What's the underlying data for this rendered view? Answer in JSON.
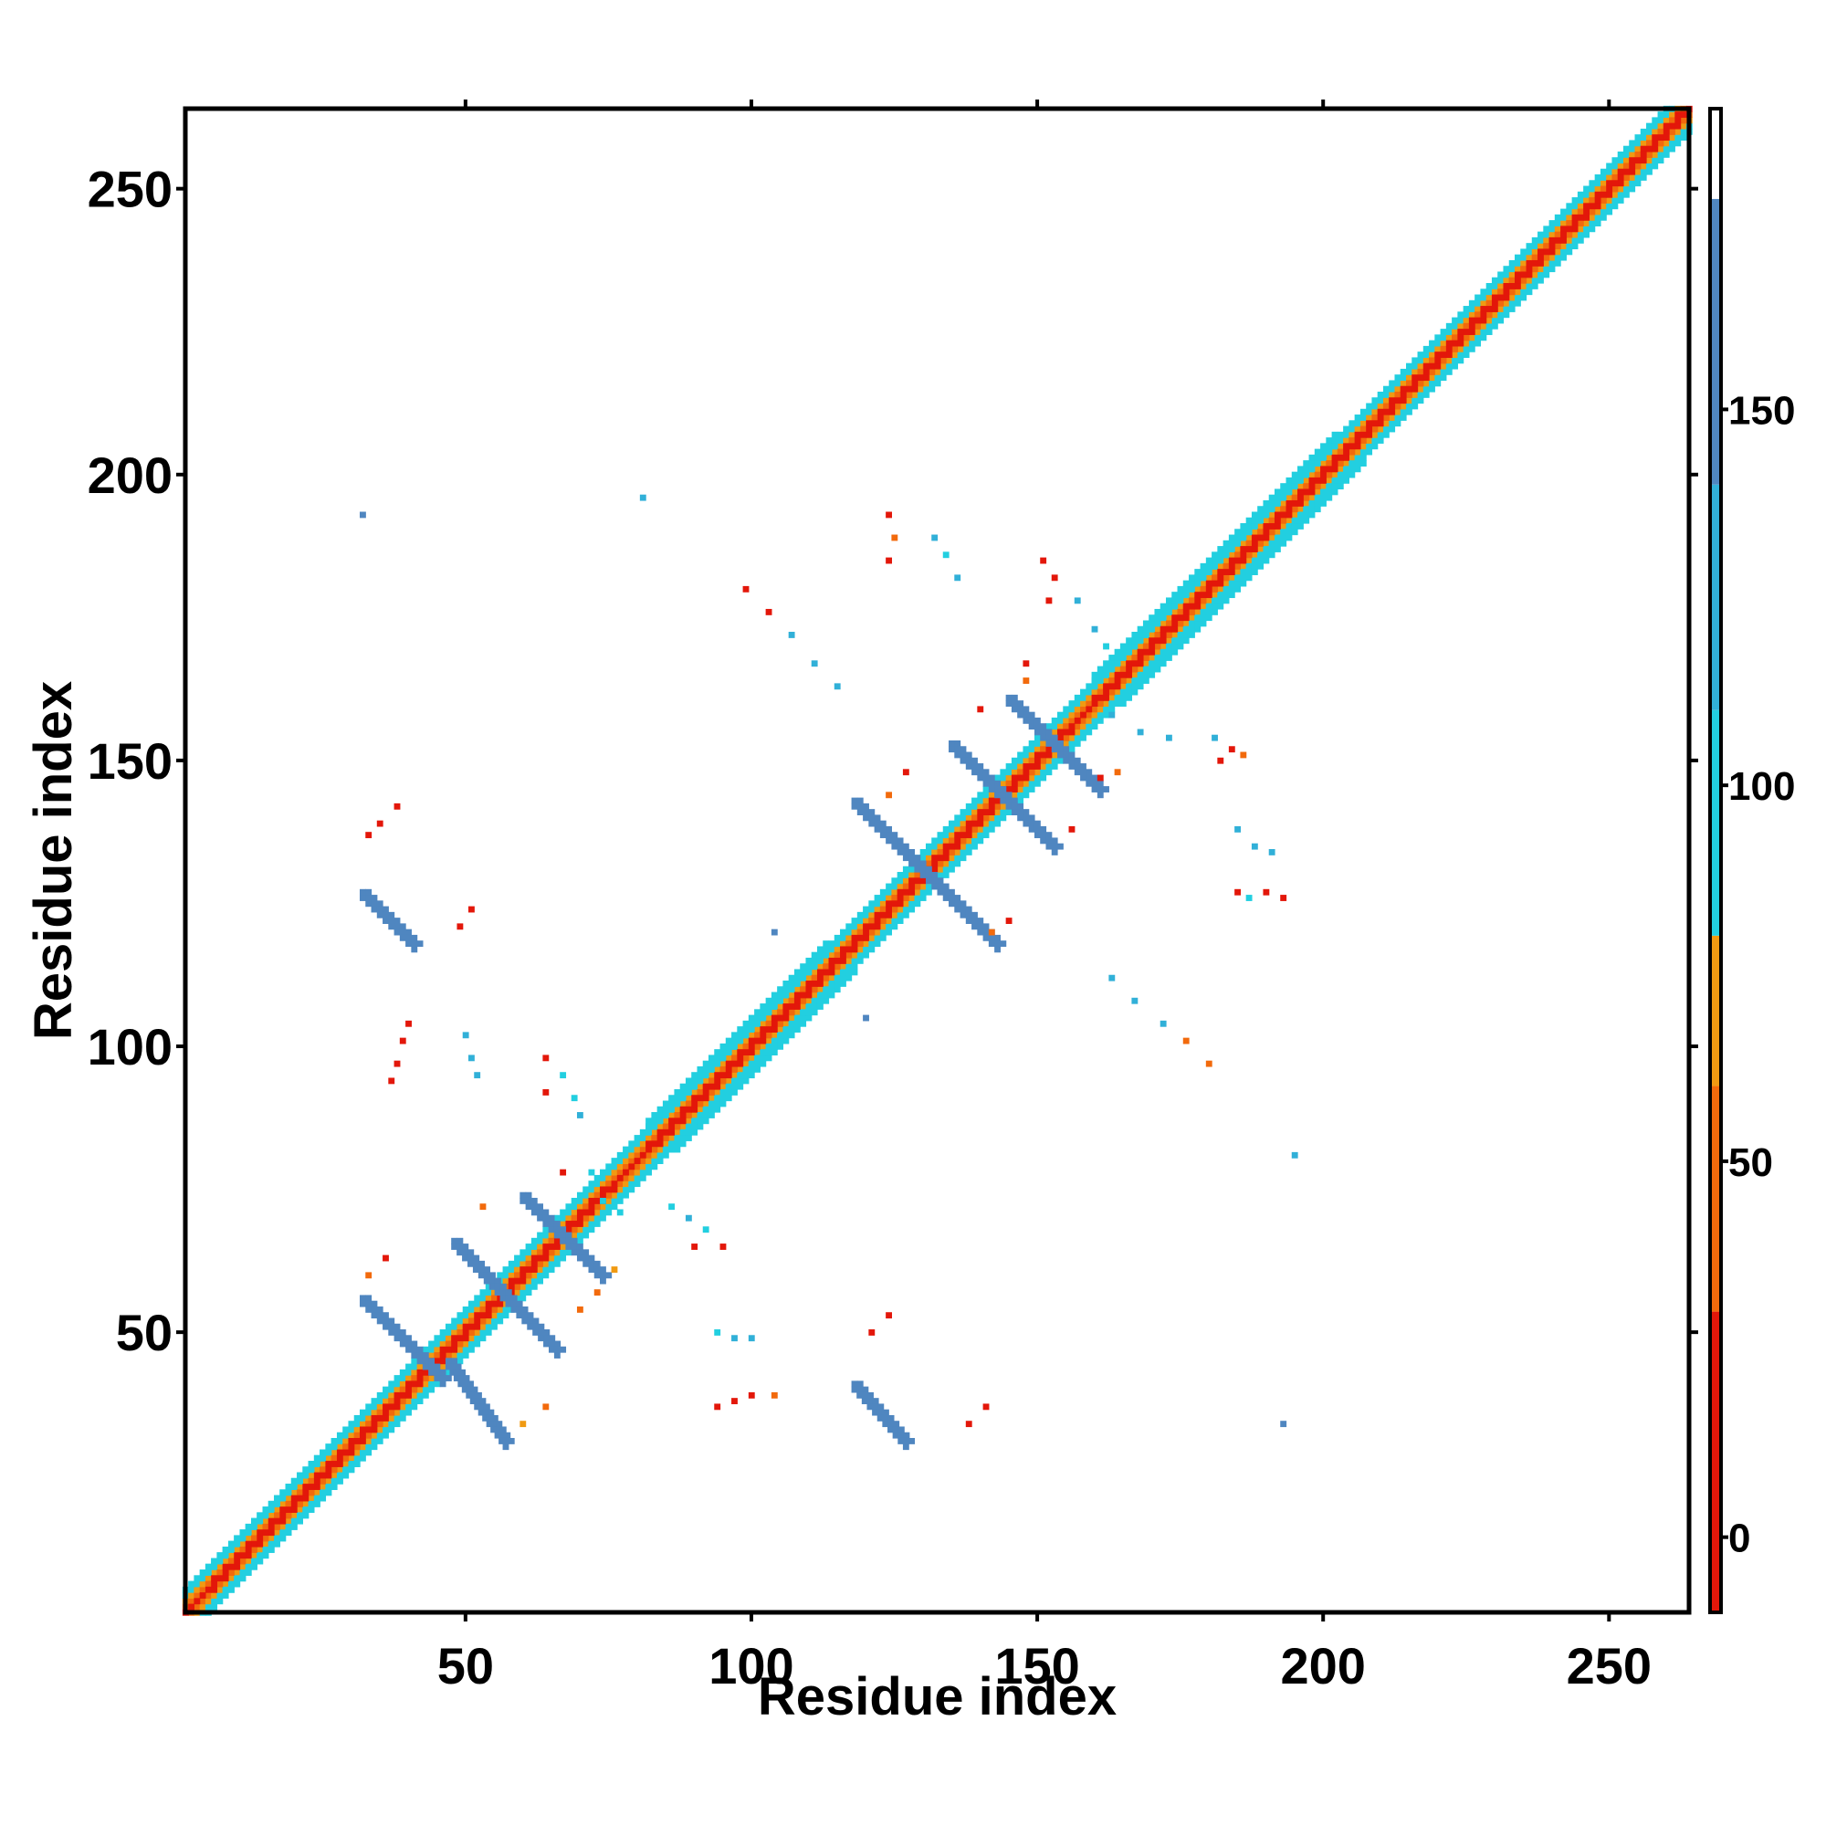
{
  "chart_data": {
    "type": "heatmap",
    "title": "",
    "xlabel": "Residue index",
    "ylabel": "Residue index",
    "xlim": [
      1,
      264
    ],
    "ylim": [
      1,
      264
    ],
    "x_ticks": [
      50,
      100,
      150,
      200,
      250
    ],
    "y_ticks": [
      50,
      100,
      150,
      200,
      250
    ],
    "x_tick_labels": [
      "50",
      "100",
      "150",
      "200",
      "250"
    ],
    "y_tick_labels": [
      "50",
      "100",
      "150",
      "200",
      "250"
    ],
    "grid": false,
    "colorbar": {
      "range": [
        -10,
        190
      ],
      "ticks": [
        0,
        50,
        100,
        150
      ],
      "tick_labels": [
        "0",
        "50",
        "100",
        "150"
      ],
      "bands": [
        {
          "from": -10,
          "to": 30,
          "color": "#e3170a"
        },
        {
          "from": 30,
          "to": 60,
          "color": "#f26a0c"
        },
        {
          "from": 60,
          "to": 80,
          "color": "#f09a12"
        },
        {
          "from": 80,
          "to": 110,
          "color": "#22cfe0"
        },
        {
          "from": 110,
          "to": 140,
          "color": "#31b0d8"
        },
        {
          "from": 140,
          "to": 178,
          "color": "#4f86c0"
        },
        {
          "from": 178,
          "to": 190,
          "color": "#ffffff"
        }
      ]
    },
    "diagonal_band": {
      "center_value": 0,
      "bands": [
        {
          "offset_min": 1,
          "offset_max": 2,
          "value": 55
        },
        {
          "offset_min": 2,
          "offset_max": 3,
          "value": 70
        },
        {
          "offset_min": 3,
          "offset_max": 5,
          "value": 95
        }
      ]
    },
    "diagonal_segments": [
      {
        "x1": 5,
        "y1": 5,
        "x2": 27,
        "y2": 27,
        "value": 95,
        "half_width": 4
      },
      {
        "x1": 28,
        "y1": 28,
        "x2": 75,
        "y2": 75,
        "value": 10,
        "half_width": 2
      },
      {
        "x1": 82,
        "y1": 82,
        "x2": 113,
        "y2": 113,
        "value": 95,
        "half_width": 5
      },
      {
        "x1": 114,
        "y1": 114,
        "x2": 155,
        "y2": 155,
        "value": 10,
        "half_width": 2
      },
      {
        "x1": 160,
        "y1": 160,
        "x2": 202,
        "y2": 202,
        "value": 95,
        "half_width": 5
      },
      {
        "x1": 203,
        "y1": 203,
        "x2": 262,
        "y2": 262,
        "value": 60,
        "half_width": 2
      }
    ],
    "strands": [
      {
        "x1": 32,
        "y1": 127,
        "x2": 41,
        "y2": 118,
        "value": 150
      },
      {
        "x1": 32,
        "y1": 56,
        "x2": 46,
        "y2": 42,
        "value": 150
      },
      {
        "x1": 47,
        "y1": 45,
        "x2": 57,
        "y2": 31,
        "value": 150
      },
      {
        "x1": 48,
        "y1": 66,
        "x2": 66,
        "y2": 47,
        "value": 140
      },
      {
        "x1": 60,
        "y1": 74,
        "x2": 74,
        "y2": 60,
        "value": 140
      },
      {
        "x1": 118,
        "y1": 41,
        "x2": 127,
        "y2": 31,
        "value": 150
      },
      {
        "x1": 118,
        "y1": 143,
        "x2": 143,
        "y2": 118,
        "value": 150
      },
      {
        "x1": 135,
        "y1": 153,
        "x2": 153,
        "y2": 135,
        "value": 150
      },
      {
        "x1": 145,
        "y1": 161,
        "x2": 161,
        "y2": 145,
        "value": 150
      }
    ],
    "points": [
      {
        "x": 32,
        "y": 193,
        "value": 150
      },
      {
        "x": 81,
        "y": 196,
        "value": 120
      },
      {
        "x": 38,
        "y": 142,
        "value": 10
      },
      {
        "x": 35,
        "y": 139,
        "value": 10
      },
      {
        "x": 33,
        "y": 137,
        "value": 20
      },
      {
        "x": 51,
        "y": 124,
        "value": 10
      },
      {
        "x": 49,
        "y": 121,
        "value": 10
      },
      {
        "x": 40,
        "y": 104,
        "value": 10
      },
      {
        "x": 39,
        "y": 101,
        "value": 20
      },
      {
        "x": 38,
        "y": 97,
        "value": 10
      },
      {
        "x": 37,
        "y": 94,
        "value": 10
      },
      {
        "x": 50,
        "y": 102,
        "value": 120
      },
      {
        "x": 51,
        "y": 98,
        "value": 130
      },
      {
        "x": 52,
        "y": 95,
        "value": 120
      },
      {
        "x": 64,
        "y": 98,
        "value": 20
      },
      {
        "x": 64,
        "y": 92,
        "value": 10
      },
      {
        "x": 67,
        "y": 95,
        "value": 100
      },
      {
        "x": 69,
        "y": 91,
        "value": 100
      },
      {
        "x": 70,
        "y": 88,
        "value": 110
      },
      {
        "x": 67,
        "y": 78,
        "value": 20
      },
      {
        "x": 72,
        "y": 78,
        "value": 100
      },
      {
        "x": 74,
        "y": 73,
        "value": 100
      },
      {
        "x": 77,
        "y": 71,
        "value": 90
      },
      {
        "x": 53,
        "y": 72,
        "value": 40
      },
      {
        "x": 36,
        "y": 63,
        "value": 20
      },
      {
        "x": 33,
        "y": 60,
        "value": 40
      },
      {
        "x": 70,
        "y": 54,
        "value": 40
      },
      {
        "x": 73,
        "y": 57,
        "value": 30
      },
      {
        "x": 76,
        "y": 61,
        "value": 60
      },
      {
        "x": 64,
        "y": 37,
        "value": 30
      },
      {
        "x": 60,
        "y": 34,
        "value": 70
      },
      {
        "x": 86,
        "y": 72,
        "value": 100
      },
      {
        "x": 89,
        "y": 70,
        "value": 110
      },
      {
        "x": 92,
        "y": 68,
        "value": 100
      },
      {
        "x": 90,
        "y": 65,
        "value": 10
      },
      {
        "x": 95,
        "y": 65,
        "value": 20
      },
      {
        "x": 94,
        "y": 50,
        "value": 100
      },
      {
        "x": 97,
        "y": 49,
        "value": 120
      },
      {
        "x": 100,
        "y": 49,
        "value": 120
      },
      {
        "x": 94,
        "y": 37,
        "value": 10
      },
      {
        "x": 97,
        "y": 38,
        "value": 20
      },
      {
        "x": 100,
        "y": 39,
        "value": 20
      },
      {
        "x": 104,
        "y": 39,
        "value": 30
      },
      {
        "x": 121,
        "y": 50,
        "value": 10
      },
      {
        "x": 124,
        "y": 53,
        "value": 20
      },
      {
        "x": 138,
        "y": 34,
        "value": 10
      },
      {
        "x": 141,
        "y": 37,
        "value": 20
      },
      {
        "x": 99,
        "y": 180,
        "value": 20
      },
      {
        "x": 103,
        "y": 176,
        "value": 20
      },
      {
        "x": 107,
        "y": 172,
        "value": 110
      },
      {
        "x": 111,
        "y": 167,
        "value": 110
      },
      {
        "x": 115,
        "y": 163,
        "value": 120
      },
      {
        "x": 124,
        "y": 193,
        "value": 20
      },
      {
        "x": 125,
        "y": 189,
        "value": 30
      },
      {
        "x": 124,
        "y": 185,
        "value": 10
      },
      {
        "x": 132,
        "y": 189,
        "value": 120
      },
      {
        "x": 134,
        "y": 186,
        "value": 100
      },
      {
        "x": 136,
        "y": 182,
        "value": 130
      },
      {
        "x": 151,
        "y": 185,
        "value": 20
      },
      {
        "x": 153,
        "y": 182,
        "value": 10
      },
      {
        "x": 152,
        "y": 178,
        "value": 20
      },
      {
        "x": 157,
        "y": 178,
        "value": 120
      },
      {
        "x": 160,
        "y": 173,
        "value": 110
      },
      {
        "x": 162,
        "y": 170,
        "value": 100
      },
      {
        "x": 148,
        "y": 167,
        "value": 20
      },
      {
        "x": 148,
        "y": 164,
        "value": 30
      },
      {
        "x": 140,
        "y": 159,
        "value": 10
      },
      {
        "x": 163,
        "y": 158,
        "value": 110
      },
      {
        "x": 168,
        "y": 155,
        "value": 110
      },
      {
        "x": 173,
        "y": 154,
        "value": 120
      },
      {
        "x": 161,
        "y": 147,
        "value": 20
      },
      {
        "x": 164,
        "y": 148,
        "value": 40
      },
      {
        "x": 156,
        "y": 138,
        "value": 10
      },
      {
        "x": 181,
        "y": 154,
        "value": 110
      },
      {
        "x": 184,
        "y": 152,
        "value": 20
      },
      {
        "x": 182,
        "y": 150,
        "value": 10
      },
      {
        "x": 186,
        "y": 151,
        "value": 40
      },
      {
        "x": 127,
        "y": 148,
        "value": 20
      },
      {
        "x": 124,
        "y": 144,
        "value": 40
      },
      {
        "x": 185,
        "y": 138,
        "value": 130
      },
      {
        "x": 188,
        "y": 135,
        "value": 110
      },
      {
        "x": 191,
        "y": 134,
        "value": 110
      },
      {
        "x": 185,
        "y": 127,
        "value": 10
      },
      {
        "x": 187,
        "y": 126,
        "value": 100
      },
      {
        "x": 190,
        "y": 127,
        "value": 20
      },
      {
        "x": 193,
        "y": 126,
        "value": 10
      },
      {
        "x": 145,
        "y": 122,
        "value": 10
      },
      {
        "x": 142,
        "y": 120,
        "value": 40
      },
      {
        "x": 104,
        "y": 120,
        "value": 150
      },
      {
        "x": 120,
        "y": 105,
        "value": 150
      },
      {
        "x": 163,
        "y": 112,
        "value": 110
      },
      {
        "x": 167,
        "y": 108,
        "value": 110
      },
      {
        "x": 172,
        "y": 104,
        "value": 110
      },
      {
        "x": 176,
        "y": 101,
        "value": 40
      },
      {
        "x": 180,
        "y": 97,
        "value": 30
      },
      {
        "x": 195,
        "y": 81,
        "value": 110
      },
      {
        "x": 193,
        "y": 34,
        "value": 150
      }
    ]
  }
}
